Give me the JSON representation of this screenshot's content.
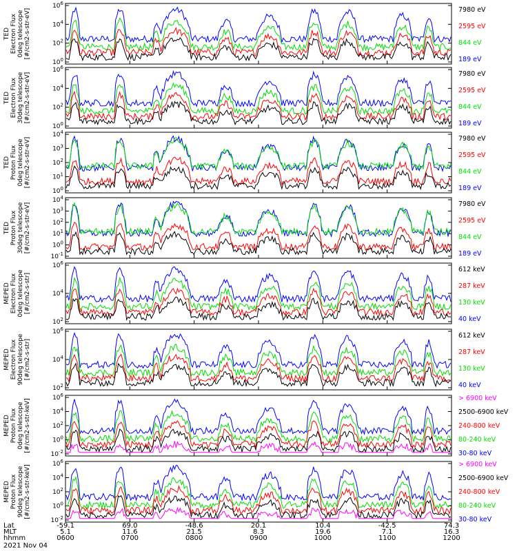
{
  "chart_data": [
    {
      "type": "line",
      "ylabel": [
        "TED",
        "Electron Flux",
        "0deg telescope",
        "[#/cm2-s-str-eV]"
      ],
      "ytick_labels": [
        "10^6",
        "10^4",
        "10^2",
        "10^0"
      ],
      "legend": [
        {
          "name": "7980 eV",
          "color": "#000000"
        },
        {
          "name": "2595 eV",
          "color": "#ff0000"
        },
        {
          "name": "844 eV",
          "color": "#00dd00"
        },
        {
          "name": "189 eV",
          "color": "#0000ff"
        }
      ]
    },
    {
      "type": "line",
      "ylabel": [
        "TED",
        "Electron Flux",
        "30deg telescope",
        "[#/cm2-s-str-eV]"
      ],
      "ytick_labels": [
        "10^6",
        "10^4",
        "10^2",
        "10^0"
      ],
      "legend": [
        {
          "name": "7980 eV",
          "color": "#000000"
        },
        {
          "name": "2595 eV",
          "color": "#ff0000"
        },
        {
          "name": "844 eV",
          "color": "#00dd00"
        },
        {
          "name": "189 eV",
          "color": "#0000ff"
        }
      ]
    },
    {
      "type": "line",
      "ylabel": [
        "TED",
        "Proton Flux",
        "0deg telescope",
        "[#/cm2-s-str-eV]"
      ],
      "ytick_labels": [
        "10^4",
        "10^3",
        "10^2",
        "10^1",
        "10^0"
      ],
      "legend": [
        {
          "name": "7980 eV",
          "color": "#000000"
        },
        {
          "name": "2595 eV",
          "color": "#ff0000"
        },
        {
          "name": "844 eV",
          "color": "#00dd00"
        },
        {
          "name": "189 eV",
          "color": "#0000ff"
        }
      ]
    },
    {
      "type": "line",
      "ylabel": [
        "TED",
        "Proton Flux",
        "30deg telescope",
        "[#/cm2-s-str-eV]"
      ],
      "ytick_labels": [
        "10^4",
        "10^3",
        "10^2",
        "10^1",
        "10^0",
        "10^-1"
      ],
      "legend": [
        {
          "name": "7980 eV",
          "color": "#000000"
        },
        {
          "name": "2595 eV",
          "color": "#ff0000"
        },
        {
          "name": "844 eV",
          "color": "#00dd00"
        },
        {
          "name": "189 eV",
          "color": "#0000ff"
        }
      ]
    },
    {
      "type": "line",
      "ylabel": [
        "MEPED",
        "Electron Flux",
        "0deg telescope",
        "[#/cm2-s-str]"
      ],
      "ytick_labels": [
        "10^6",
        "10^4",
        "10^2"
      ],
      "legend": [
        {
          "name": "612 keV",
          "color": "#000000"
        },
        {
          "name": "287 keV",
          "color": "#ff0000"
        },
        {
          "name": "130 keV",
          "color": "#00dd00"
        },
        {
          "name": "40 keV",
          "color": "#0000ff"
        }
      ]
    },
    {
      "type": "line",
      "ylabel": [
        "MEPED",
        "Electron Flux",
        "90deg telescope",
        "[#/cm2-s-str]"
      ],
      "ytick_labels": [
        "10^6",
        "10^4",
        "10^2"
      ],
      "legend": [
        {
          "name": "612 keV",
          "color": "#000000"
        },
        {
          "name": "287 keV",
          "color": "#ff0000"
        },
        {
          "name": "130 keV",
          "color": "#00dd00"
        },
        {
          "name": "40 keV",
          "color": "#0000ff"
        }
      ]
    },
    {
      "type": "line",
      "ylabel": [
        "MEPED",
        "Proton Flux",
        "0deg telescope",
        "[#/cm2-s-str-keV]"
      ],
      "ytick_labels": [
        "10^6",
        "10^4",
        "10^2",
        "10^0",
        "10^-2"
      ],
      "legend": [
        {
          "name": "> 6900 keV",
          "color": "#ff00ff"
        },
        {
          "name": "2500-6900 keV",
          "color": "#000000"
        },
        {
          "name": "240-800 keV",
          "color": "#ff0000"
        },
        {
          "name": "80-240 keV",
          "color": "#00dd00"
        },
        {
          "name": "30-80 keV",
          "color": "#0000ff"
        }
      ]
    },
    {
      "type": "line",
      "ylabel": [
        "MEPED",
        "Proton Flux",
        "90deg telescope",
        "[#/cm2-s-str-keV]"
      ],
      "ytick_labels": [
        "10^6",
        "10^4",
        "10^2",
        "10^0",
        "10^-2"
      ],
      "legend": [
        {
          "name": "> 6900 keV",
          "color": "#ff00ff"
        },
        {
          "name": "2500-6900 keV",
          "color": "#000000"
        },
        {
          "name": "240-800 keV",
          "color": "#ff0000"
        },
        {
          "name": "80-240 keV",
          "color": "#00dd00"
        },
        {
          "name": "30-80 keV",
          "color": "#0000ff"
        }
      ]
    }
  ],
  "time_axis": {
    "row_labels": [
      "Lat",
      "MLT",
      "hhmm"
    ],
    "ticks": [
      {
        "lat": "-59.1",
        "mlt": "5.1",
        "hhmm": "0600"
      },
      {
        "lat": "69.0",
        "mlt": "11.6",
        "hhmm": "0700"
      },
      {
        "lat": "-48.6",
        "mlt": "21.5",
        "hhmm": "0800"
      },
      {
        "lat": "20.1",
        "mlt": "8.3",
        "hhmm": "0900"
      },
      {
        "lat": "10.4",
        "mlt": "19.6",
        "hhmm": "1000"
      },
      {
        "lat": "-42.5",
        "mlt": "7.1",
        "hhmm": "1100"
      },
      {
        "lat": "74.3",
        "mlt": "16.3",
        "hhmm": "1200"
      }
    ],
    "date": "2021 Nov 04"
  }
}
